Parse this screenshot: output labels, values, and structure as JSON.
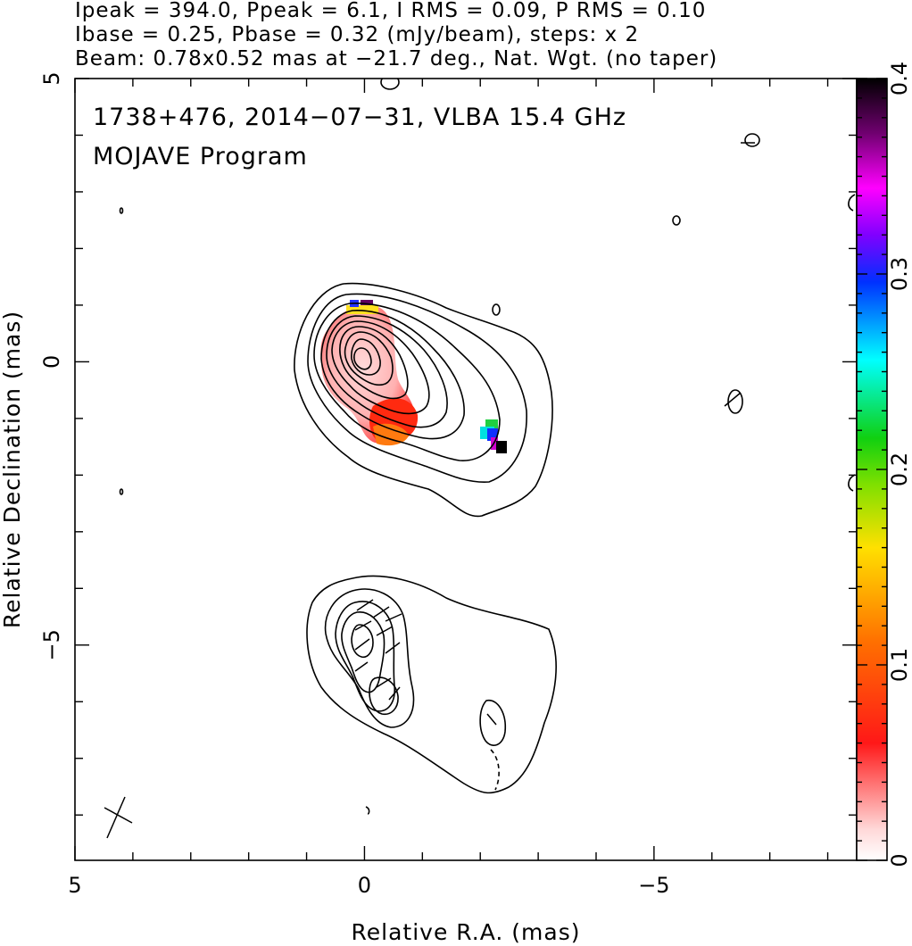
{
  "header": {
    "line1": "Ipeak = 394.0, Ppeak = 6.1, I RMS = 0.09, P RMS = 0.10",
    "line2": "Ibase = 0.25, Pbase = 0.32 (mJy/beam), steps: x 2",
    "line3": "Beam: 0.78x0.52 mas at −21.7 deg., Nat. Wgt. (no taper)"
  },
  "plot": {
    "title_line1": "1738+476, 2014−07−31, VLBA 15.4 GHz",
    "title_line2": "MOJAVE Program"
  },
  "chart_data": {
    "type": "heatmap",
    "xlabel": "Relative R.A. (mas)",
    "ylabel": "Relative Declination (mas)",
    "xlim": [
      5.0,
      -8.5
    ],
    "ylim": [
      -8.8,
      5.0
    ],
    "x_ticks": [
      5,
      0,
      -5
    ],
    "x_tick_labels": [
      "5",
      "0",
      "−5"
    ],
    "y_ticks": [
      5,
      0,
      -5
    ],
    "y_tick_labels": [
      "5",
      "0",
      "−5"
    ],
    "colorbar": {
      "range": [
        0,
        0.4
      ],
      "ticks": [
        0,
        0.1,
        0.2,
        0.3,
        0.4
      ],
      "tick_labels": [
        "0",
        "0.1",
        "0.2",
        "0.3",
        "0.4"
      ],
      "colors": [
        "#ffe8e8",
        "#ff1010",
        "#ff8000",
        "#ffff00",
        "#20d020",
        "#00ffff",
        "#0040ff",
        "#ff00ff",
        "#600060",
        "#000000"
      ]
    },
    "features": {
      "core_peak_mas": [
        0.0,
        0.0
      ],
      "component_mas": [
        -0.7,
        -0.9
      ],
      "knot_mas": [
        -2.3,
        -1.2
      ],
      "southern_feature_mas": [
        -0.5,
        -5.3
      ]
    }
  }
}
